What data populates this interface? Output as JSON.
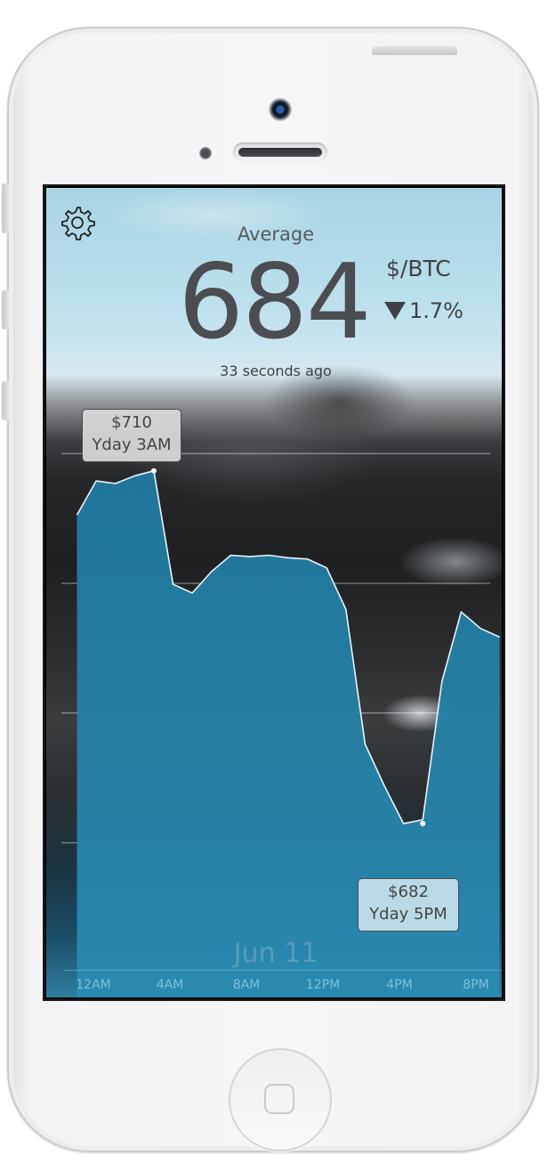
{
  "app": {
    "settings_icon": "gear-icon",
    "title": "Average",
    "price": "684",
    "unit": "$/BTC",
    "change_direction": "down",
    "change": "1.7%",
    "updated": "33 seconds ago",
    "date": "Jun 11"
  },
  "tooltips": {
    "high_value": "$710",
    "high_time": "Yday 3AM",
    "low_value": "$682",
    "low_time": "Yday 5PM"
  },
  "colors": {
    "area_fill": "#1f7aa0",
    "line": "#e8f4f8",
    "text_dark": "#4b4d50",
    "tick_text": "#7fc0d8"
  },
  "chart_data": {
    "type": "area",
    "x_ticks": [
      "12AM",
      "4AM",
      "8AM",
      "12PM",
      "4PM",
      "8PM"
    ],
    "x_hours": [
      -1,
      0,
      1,
      2,
      3,
      4,
      5,
      6,
      7,
      8,
      9,
      10,
      11,
      12,
      13,
      14,
      15,
      16,
      17,
      18,
      19,
      20,
      21
    ],
    "series": [
      {
        "values": [
          706.5,
          709.2,
          709.0,
          709.6,
          710.0,
          701.0,
          700.3,
          702.0,
          703.3,
          703.2,
          703.3,
          703.1,
          703.0,
          702.3,
          699.0,
          688.3,
          685.0,
          682.0,
          682.3,
          693.3,
          698.8,
          697.5,
          696.8
        ]
      }
    ],
    "high": {
      "hour": 3,
      "value": 710
    },
    "low": {
      "hour": 17,
      "value": 682
    },
    "ylim": [
      677.7,
      711.3
    ],
    "grid": true
  }
}
